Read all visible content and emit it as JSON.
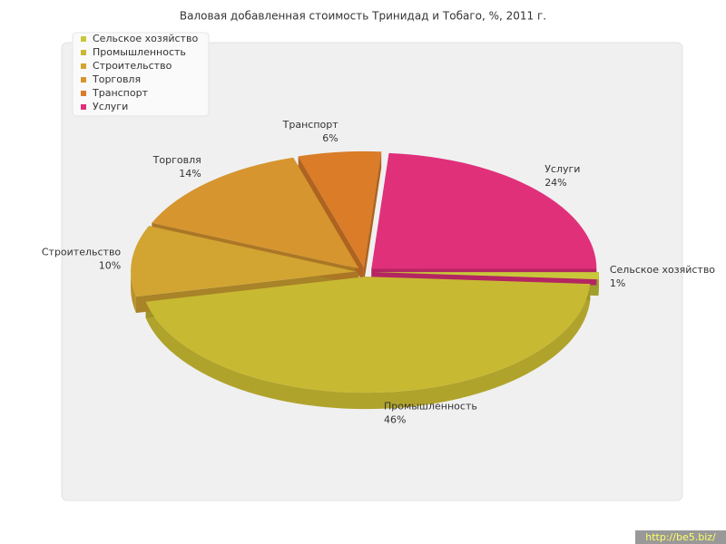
{
  "chart_data": {
    "type": "pie",
    "title": "Валовая добавленная стоимость Тринидад и Тобаго, %, 2011 г.",
    "categories": [
      "Сельское хозяйство",
      "Промышленность",
      "Строительство",
      "Торговля",
      "Транспорт",
      "Услуги"
    ],
    "values": [
      1,
      46,
      10,
      14,
      6,
      24
    ],
    "value_labels": [
      "1%",
      "46%",
      "10%",
      "14%",
      "6%",
      "24%"
    ],
    "colors": [
      "#c8c83a",
      "#c8b932",
      "#d2a432",
      "#d6952e",
      "#da7c28",
      "#e0307a"
    ],
    "legend": "top-left",
    "watermark": "http://be5.biz/"
  }
}
